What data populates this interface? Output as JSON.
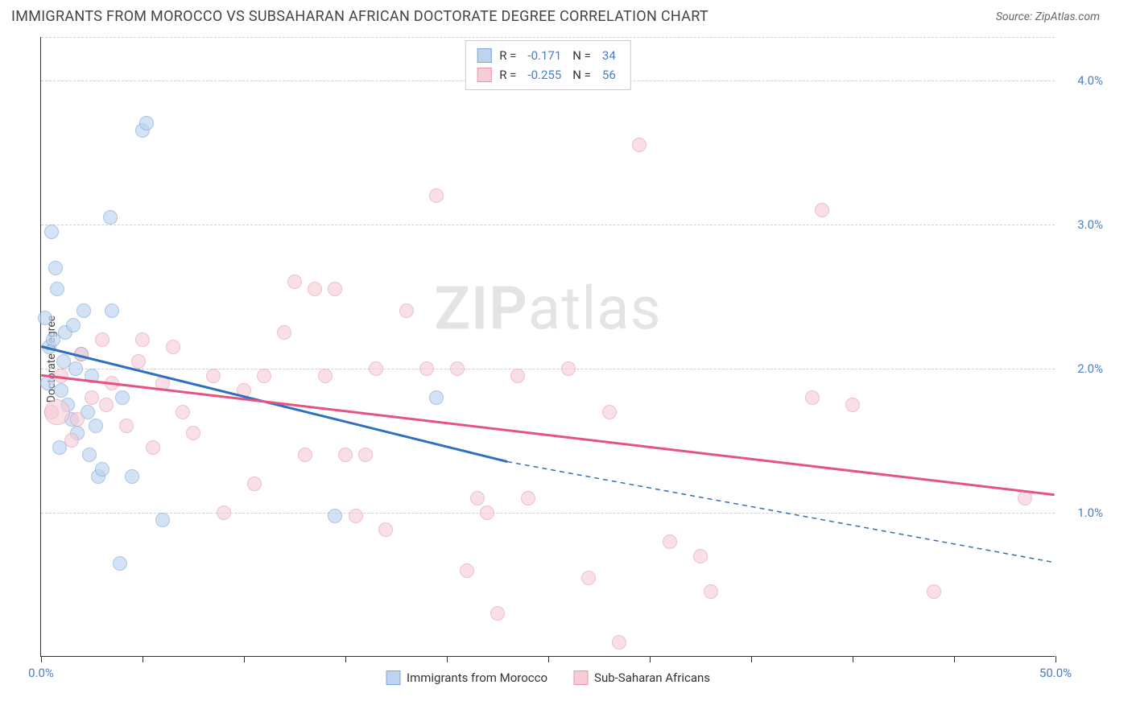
{
  "title": "IMMIGRANTS FROM MOROCCO VS SUBSAHARAN AFRICAN DOCTORATE DEGREE CORRELATION CHART",
  "source_label": "Source: ZipAtlas.com",
  "y_axis_label": "Doctorate Degree",
  "watermark": {
    "bold": "ZIP",
    "rest": "atlas"
  },
  "chart": {
    "type": "scatter",
    "background_color": "#ffffff",
    "grid_color": "#d0d0d0",
    "axis_color": "#333333",
    "tick_label_color": "#4a7ec8",
    "tick_fontsize": 15,
    "xlim": [
      0,
      50
    ],
    "ylim": [
      0,
      4.3
    ],
    "y_gridlines": [
      1.0,
      2.0,
      3.0,
      4.0
    ],
    "y_tick_labels": [
      "1.0%",
      "2.0%",
      "3.0%",
      "4.0%"
    ],
    "x_ticks": [
      0,
      5,
      10,
      15,
      20,
      25,
      30,
      35,
      40,
      45,
      50
    ],
    "x_tick_labels": {
      "0": "0.0%",
      "50": "50.0%"
    },
    "marker_radius": 9,
    "marker_stroke_width": 1.4,
    "series": [
      {
        "name": "Immigrants from Morocco",
        "fill_color": "#bcd4ef",
        "stroke_color": "#7ba8d9",
        "fill_opacity": 0.65,
        "r_value": "-0.171",
        "n_value": "34",
        "trend": {
          "color": "#2e6fc0",
          "width": 3,
          "solid_from_x": 0,
          "solid_to_x": 23,
          "y_at_0": 2.15,
          "y_at_23": 1.35,
          "y_at_50": 0.65,
          "dashed_after": true
        },
        "points": [
          [
            0.4,
            2.15
          ],
          [
            0.5,
            2.95
          ],
          [
            0.8,
            2.55
          ],
          [
            0.6,
            2.2
          ],
          [
            1.0,
            1.85
          ],
          [
            1.2,
            2.25
          ],
          [
            1.5,
            1.65
          ],
          [
            1.7,
            2.0
          ],
          [
            2.0,
            2.1
          ],
          [
            2.3,
            1.7
          ],
          [
            2.5,
            1.95
          ],
          [
            2.7,
            1.6
          ],
          [
            2.1,
            2.4
          ],
          [
            3.4,
            3.05
          ],
          [
            3.5,
            2.4
          ],
          [
            4.0,
            1.8
          ],
          [
            4.5,
            1.25
          ],
          [
            5.0,
            3.65
          ],
          [
            5.2,
            3.7
          ],
          [
            2.8,
            1.25
          ],
          [
            3.0,
            1.3
          ],
          [
            1.3,
            1.75
          ],
          [
            0.3,
            1.9
          ],
          [
            0.9,
            1.45
          ],
          [
            3.9,
            0.65
          ],
          [
            6.0,
            0.95
          ],
          [
            1.8,
            1.55
          ],
          [
            2.4,
            1.4
          ],
          [
            0.7,
            2.7
          ],
          [
            14.5,
            0.98
          ],
          [
            0.2,
            2.35
          ],
          [
            1.1,
            2.05
          ],
          [
            1.6,
            2.3
          ],
          [
            19.5,
            1.8
          ]
        ]
      },
      {
        "name": "Sub-Saharan Africans",
        "fill_color": "#f6ccd6",
        "stroke_color": "#e794aa",
        "fill_opacity": 0.6,
        "r_value": "-0.255",
        "n_value": "56",
        "trend": {
          "color": "#e55383",
          "width": 3,
          "solid_from_x": 0,
          "solid_to_x": 50,
          "y_at_0": 1.95,
          "y_at_50": 1.12,
          "dashed_after": false
        },
        "points": [
          [
            0.5,
            1.7
          ],
          [
            1.0,
            1.95
          ],
          [
            1.5,
            1.5
          ],
          [
            2.0,
            2.1
          ],
          [
            2.5,
            1.8
          ],
          [
            3.0,
            2.2
          ],
          [
            3.5,
            1.9
          ],
          [
            4.2,
            1.6
          ],
          [
            4.8,
            2.05
          ],
          [
            5.5,
            1.45
          ],
          [
            6.0,
            1.9
          ],
          [
            6.5,
            2.15
          ],
          [
            7.0,
            1.7
          ],
          [
            8.5,
            1.95
          ],
          [
            9.0,
            1.0
          ],
          [
            10.0,
            1.85
          ],
          [
            11.0,
            1.95
          ],
          [
            12.0,
            2.25
          ],
          [
            12.5,
            2.6
          ],
          [
            13.0,
            1.4
          ],
          [
            13.5,
            2.55
          ],
          [
            14.0,
            1.95
          ],
          [
            15.0,
            1.4
          ],
          [
            15.5,
            0.98
          ],
          [
            14.5,
            2.55
          ],
          [
            16.0,
            1.4
          ],
          [
            16.5,
            2.0
          ],
          [
            17.0,
            0.88
          ],
          [
            18.0,
            2.4
          ],
          [
            19.0,
            2.0
          ],
          [
            19.5,
            3.2
          ],
          [
            20.5,
            2.0
          ],
          [
            21.0,
            0.6
          ],
          [
            21.5,
            1.1
          ],
          [
            22.0,
            1.0
          ],
          [
            22.5,
            0.3
          ],
          [
            23.5,
            1.95
          ],
          [
            24.0,
            1.1
          ],
          [
            26.0,
            2.0
          ],
          [
            27.0,
            0.55
          ],
          [
            28.0,
            1.7
          ],
          [
            28.5,
            0.1
          ],
          [
            29.5,
            3.55
          ],
          [
            31.0,
            0.8
          ],
          [
            32.5,
            0.7
          ],
          [
            33.0,
            0.45
          ],
          [
            38.0,
            1.8
          ],
          [
            38.5,
            3.1
          ],
          [
            40.0,
            1.75
          ],
          [
            44.0,
            0.45
          ],
          [
            48.5,
            1.1
          ],
          [
            5.0,
            2.2
          ],
          [
            7.5,
            1.55
          ],
          [
            10.5,
            1.2
          ],
          [
            3.2,
            1.75
          ],
          [
            1.8,
            1.65
          ]
        ],
        "big_point": {
          "x": 0.8,
          "y": 1.7,
          "radius": 16
        }
      }
    ],
    "legend_box": {
      "r_label": "R =",
      "n_label": "N ="
    },
    "bottom_legend": [
      "Immigrants from Morocco",
      "Sub-Saharan Africans"
    ]
  }
}
